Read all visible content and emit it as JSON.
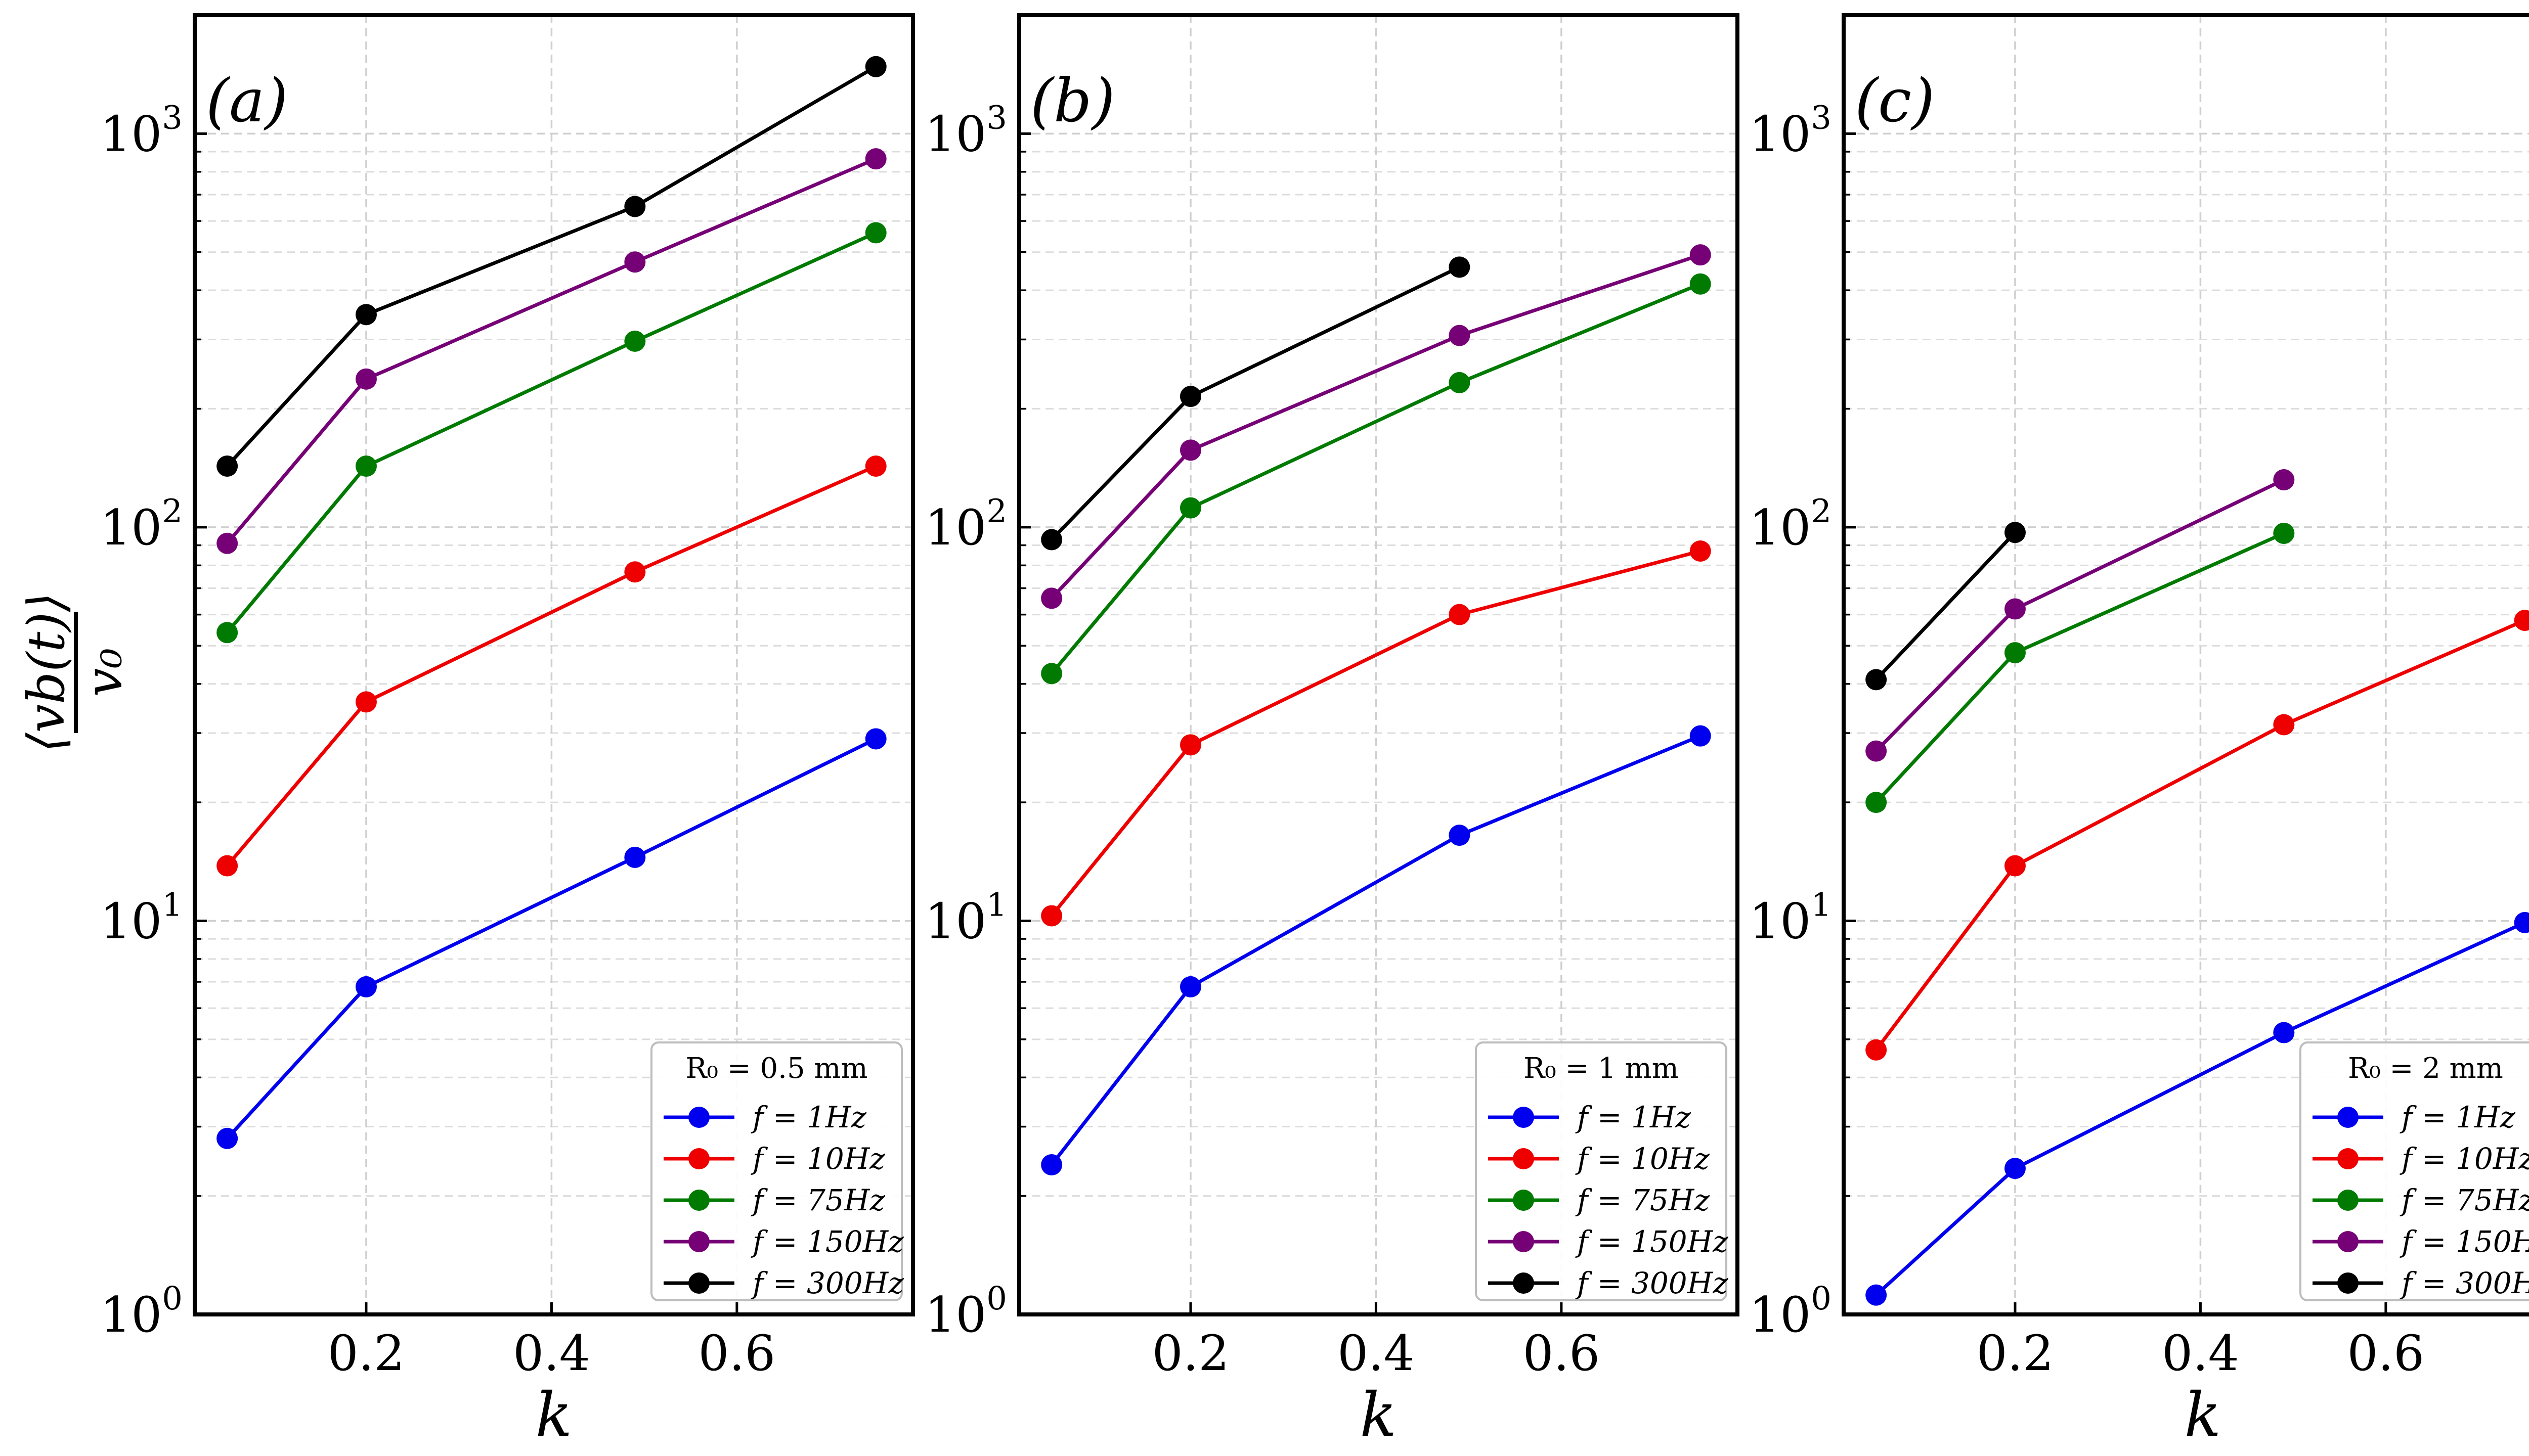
{
  "chart_data": [
    {
      "type": "line",
      "panel_tag": "(a)",
      "xlabel": "k",
      "ylabel": "⟨v_b(t)⟩ / v₀",
      "yscale": "log",
      "ylim": [
        1,
        2000
      ],
      "xlim": [
        0.015,
        0.79
      ],
      "x_ticks": [
        "0.2",
        "0.4",
        "0.6"
      ],
      "y_ticks": [
        "10",
        "10",
        "10",
        "10"
      ],
      "y_tick_exponents": [
        "0",
        "1",
        "2",
        "3"
      ],
      "grid": true,
      "legend": {
        "placement": "lower-right",
        "title": "R₀ = 0.5 mm",
        "entries": [
          "f = 1Hz",
          "f = 10Hz",
          "f = 75Hz",
          "f = 150Hz",
          "f = 300Hz"
        ]
      },
      "series": [
        {
          "name": "f = 1Hz",
          "color": "#0000ee",
          "x": [
            0.05,
            0.2,
            0.49,
            0.75
          ],
          "y": [
            2.8,
            6.8,
            14.5,
            29
          ]
        },
        {
          "name": "f = 10Hz",
          "color": "#ee0000",
          "x": [
            0.05,
            0.2,
            0.49,
            0.75
          ],
          "y": [
            13.8,
            36,
            77,
            143
          ]
        },
        {
          "name": "f = 75Hz",
          "color": "#007a00",
          "x": [
            0.05,
            0.2,
            0.49,
            0.75
          ],
          "y": [
            54,
            143,
            297,
            560
          ]
        },
        {
          "name": "f = 150Hz",
          "color": "#760076",
          "x": [
            0.05,
            0.2,
            0.49,
            0.75
          ],
          "y": [
            91,
            238,
            472,
            863
          ]
        },
        {
          "name": "f = 300Hz",
          "color": "#000000",
          "x": [
            0.05,
            0.2,
            0.49,
            0.75
          ],
          "y": [
            143,
            347,
            653,
            1480
          ]
        }
      ]
    },
    {
      "type": "line",
      "panel_tag": "(b)",
      "xlabel": "k",
      "ylabel": "",
      "yscale": "log",
      "ylim": [
        1,
        2000
      ],
      "xlim": [
        0.015,
        0.79
      ],
      "x_ticks": [
        "0.2",
        "0.4",
        "0.6"
      ],
      "y_ticks": [
        "10",
        "10",
        "10",
        "10"
      ],
      "y_tick_exponents": [
        "0",
        "1",
        "2",
        "3"
      ],
      "grid": true,
      "legend": {
        "placement": "lower-right",
        "title": "R₀ = 1 mm",
        "entries": [
          "f = 1Hz",
          "f = 10Hz",
          "f = 75Hz",
          "f = 150Hz",
          "f = 300Hz"
        ]
      },
      "series": [
        {
          "name": "f = 1Hz",
          "color": "#0000ee",
          "x": [
            0.05,
            0.2,
            0.49,
            0.75
          ],
          "y": [
            2.4,
            6.8,
            16.5,
            29.5
          ]
        },
        {
          "name": "f = 10Hz",
          "color": "#ee0000",
          "x": [
            0.05,
            0.2,
            0.49,
            0.75
          ],
          "y": [
            10.3,
            28,
            60,
            87
          ]
        },
        {
          "name": "f = 75Hz",
          "color": "#007a00",
          "x": [
            0.05,
            0.2,
            0.49,
            0.75
          ],
          "y": [
            42.5,
            112,
            233,
            415
          ]
        },
        {
          "name": "f = 150Hz",
          "color": "#760076",
          "x": [
            0.05,
            0.2,
            0.49,
            0.75
          ],
          "y": [
            66,
            157,
            307,
            492
          ]
        },
        {
          "name": "f = 300Hz",
          "color": "#000000",
          "x": [
            0.05,
            0.2,
            0.49
          ],
          "y": [
            93,
            215,
            458
          ]
        }
      ]
    },
    {
      "type": "line",
      "panel_tag": "(c)",
      "xlabel": "k",
      "ylabel": "",
      "yscale": "log",
      "ylim": [
        1,
        2000
      ],
      "xlim": [
        0.015,
        0.79
      ],
      "x_ticks": [
        "0.2",
        "0.4",
        "0.6"
      ],
      "y_ticks": [
        "10",
        "10",
        "10",
        "10"
      ],
      "y_tick_exponents": [
        "0",
        "1",
        "2",
        "3"
      ],
      "grid": true,
      "legend": {
        "placement": "lower-right",
        "title": "R₀ = 2 mm",
        "entries": [
          "f = 1Hz",
          "f = 10Hz",
          "f = 75Hz",
          "f = 150Hz",
          "f = 300Hz"
        ]
      },
      "series": [
        {
          "name": "f = 1Hz",
          "color": "#0000ee",
          "x": [
            0.05,
            0.2,
            0.49,
            0.75
          ],
          "y": [
            1.12,
            2.35,
            5.2,
            9.9
          ]
        },
        {
          "name": "f = 10Hz",
          "color": "#ee0000",
          "x": [
            0.05,
            0.2,
            0.49,
            0.75
          ],
          "y": [
            4.7,
            13.8,
            31.5,
            58
          ]
        },
        {
          "name": "f = 75Hz",
          "color": "#007a00",
          "x": [
            0.05,
            0.2,
            0.49
          ],
          "y": [
            20,
            48,
            96.5
          ]
        },
        {
          "name": "f = 150Hz",
          "color": "#760076",
          "x": [
            0.05,
            0.2,
            0.49
          ],
          "y": [
            27,
            62,
            132
          ]
        },
        {
          "name": "f = 300Hz",
          "color": "#000000",
          "x": [
            0.05,
            0.2
          ],
          "y": [
            41,
            97
          ]
        }
      ]
    }
  ]
}
